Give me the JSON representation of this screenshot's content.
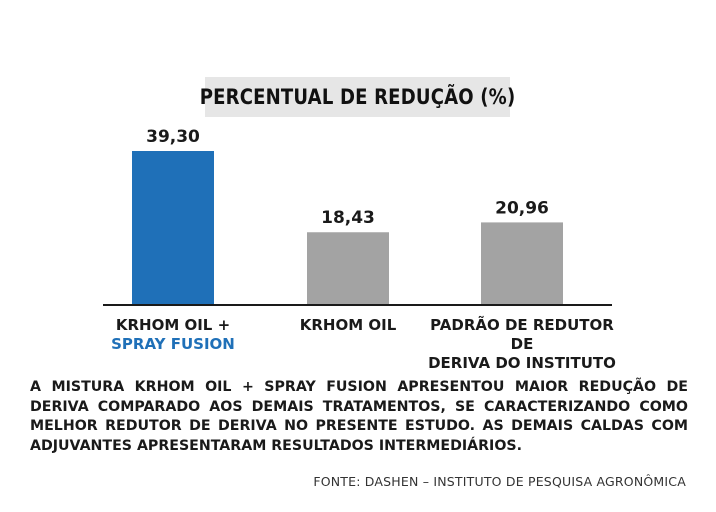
{
  "chart_data": {
    "type": "bar",
    "title": "PERCENTUAL DE REDUÇÃO (%)",
    "categories": [
      "KRHOM OIL + SPRAY FUSION",
      "KRHOM OIL",
      "PADRÃO DE REDUTOR DE DERIVA DO INSTITUTO"
    ],
    "values": [
      39.3,
      18.43,
      20.96
    ],
    "value_labels": [
      "39,30",
      "18,43",
      "20,96"
    ],
    "bar_colors": [
      "#1f70b8",
      "#a3a3a3",
      "#a3a3a3"
    ],
    "ylim": [
      0,
      39.3
    ],
    "xlabel": "",
    "ylabel": "",
    "grid": false
  },
  "category_labels": [
    {
      "line1": "KRHOM OIL +",
      "line2": "SPRAY FUSION",
      "line2_highlight": true
    },
    {
      "line1": "KRHOM OIL",
      "line2": "",
      "line2_highlight": false
    },
    {
      "line1": "PADRÃO DE REDUTOR DE",
      "line2": "DERIVA DO INSTITUTO",
      "line2_highlight": false
    }
  ],
  "description": "A MISTURA KRHOM OIL + SPRAY FUSION APRESENTOU MAIOR REDUÇÃO DE DERIVA COMPARADO AOS DEMAIS TRATAMENTOS, SE CARACTERIZANDO COMO MELHOR REDUTOR DE DERIVA NO PRESENTE ESTUDO. AS DEMAIS CALDAS COM ADJUVANTES APRESENTARAM RESULTADOS INTERMEDIÁRIOS.",
  "source": "FONTE: DASHEN – INSTITUTO DE PESQUISA AGRONÔMICA",
  "colors": {
    "accent": "#1f70b8",
    "bar_secondary": "#a3a3a3",
    "title_background": "#e6e6e6",
    "baseline": "#1a1a1a"
  }
}
